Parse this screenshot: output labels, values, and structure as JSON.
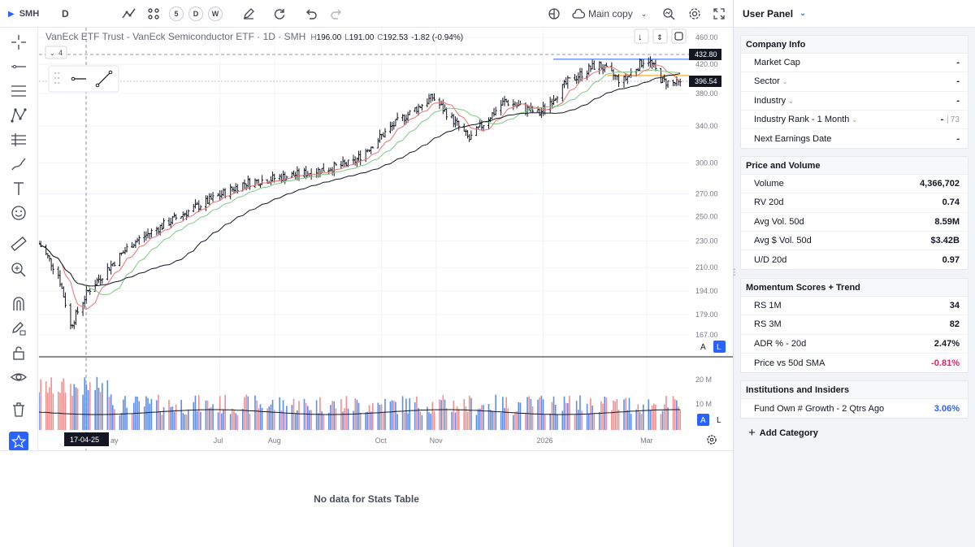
{
  "topbar": {
    "symbol": "SMH",
    "interval": "D",
    "interval_5": "5",
    "interval_d": "D",
    "interval_w": "W",
    "layout_name": "Main copy"
  },
  "chart": {
    "legend": {
      "title": "VanEck ETF Trust - VanEck Semiconductor ETF · 1D · SMH",
      "h_label": "H",
      "h_value": "196.00",
      "l_label": "L",
      "l_value": "191.00",
      "c_label": "C",
      "c_value": "192.53",
      "change": "-1.82 (-0.94%)"
    },
    "indicator_count": "4",
    "price_axis": [
      "460.00",
      "420.00",
      "380.00",
      "340.00",
      "300.00",
      "270.00",
      "250.00",
      "230.00",
      "210.00",
      "194.00",
      "179.00",
      "167.00"
    ],
    "price_tag_crosshair": "432.80",
    "price_tag_last": "396.54",
    "volume_axis": [
      "20 M",
      "10 M"
    ],
    "time_axis": [
      "Jul",
      "Aug",
      "Oct",
      "Nov",
      "2026",
      "Mar"
    ],
    "time_axis_partial": "ay",
    "crosshair_date": "17-04-25",
    "scale_auto": "A",
    "scale_log": "L",
    "volume_scale_auto": "A",
    "volume_scale_log": "L"
  },
  "chart_data": {
    "type": "candlestick",
    "symbol": "SMH",
    "interval": "1D",
    "y_scale": "log",
    "ylim": [
      167,
      460
    ],
    "volume_ylim": [
      0,
      22000000
    ],
    "moving_averages_colors": [
      "#e57373",
      "#81c784",
      "#131722"
    ],
    "anchors": [
      {
        "x": "2025-04-07",
        "y": 172
      },
      {
        "x": "2025-04-17",
        "y": 194
      },
      {
        "x": "2025-05-12",
        "y": 228
      },
      {
        "x": "2025-06-10",
        "y": 252
      },
      {
        "x": "2025-07-15",
        "y": 280
      },
      {
        "x": "2025-08-20",
        "y": 290
      },
      {
        "x": "2025-09-15",
        "y": 300
      },
      {
        "x": "2025-10-10",
        "y": 345
      },
      {
        "x": "2025-10-30",
        "y": 375
      },
      {
        "x": "2025-11-20",
        "y": 325
      },
      {
        "x": "2025-12-10",
        "y": 370
      },
      {
        "x": "2025-12-30",
        "y": 355
      },
      {
        "x": "2026-01-15",
        "y": 395
      },
      {
        "x": "2026-02-01",
        "y": 420
      },
      {
        "x": "2026-02-15",
        "y": 395
      },
      {
        "x": "2026-03-01",
        "y": 430
      },
      {
        "x": "2026-03-10",
        "y": 396
      },
      {
        "x": "2026-03-20",
        "y": 392
      }
    ],
    "horizontal_lines": [
      {
        "y": 427,
        "color": "#2962ff"
      },
      {
        "y": 404,
        "color": "#ff9800"
      }
    ],
    "last_close": 396.54,
    "ma_color_legend": []
  },
  "stats_table": {
    "empty_message": "No data for Stats Table"
  },
  "panel": {
    "title": "User Panel",
    "company_info": {
      "title": "Company Info",
      "rows": [
        {
          "label": "Market Cap",
          "value": "-"
        },
        {
          "label": "Sector",
          "value": "-"
        },
        {
          "label": "Industry",
          "value": "-"
        },
        {
          "label": "Industry Rank - 1 Month",
          "value": "-",
          "extra": "73"
        },
        {
          "label": "Next Earnings Date",
          "value": "-"
        }
      ]
    },
    "price_volume": {
      "title": "Price and Volume",
      "rows": [
        {
          "label": "Volume",
          "value": "4,366,702"
        },
        {
          "label": "RV 20d",
          "value": "0.74"
        },
        {
          "label": "Avg Vol. 50d",
          "value": "8.59M"
        },
        {
          "label": "Avg $ Vol. 50d",
          "value": "$3.42B"
        },
        {
          "label": "U/D 20d",
          "value": "0.97"
        }
      ]
    },
    "momentum": {
      "title": "Momentum Scores + Trend",
      "rows": [
        {
          "label": "RS 1M",
          "value": "34"
        },
        {
          "label": "RS 3M",
          "value": "82"
        },
        {
          "label": "ADR % - 20d",
          "value": "2.47%"
        },
        {
          "label": "Price vs 50d SMA",
          "value": "-0.81%"
        }
      ]
    },
    "institutions": {
      "title": "Institutions and Insiders",
      "rows": [
        {
          "label": "Fund Own # Growth - 2 Qtrs Ago",
          "value": "3.06%"
        }
      ]
    },
    "add_category": "Add Category"
  },
  "colors": {
    "accent": "#2962ff",
    "up": "#131722",
    "down": "#131722",
    "volume_up": "#5b8def",
    "volume_down": "#ef8f8f",
    "ma_fast": "#e57373",
    "ma_mid": "#81c784",
    "ma_slow": "#131722",
    "negative": "#e91e63"
  }
}
